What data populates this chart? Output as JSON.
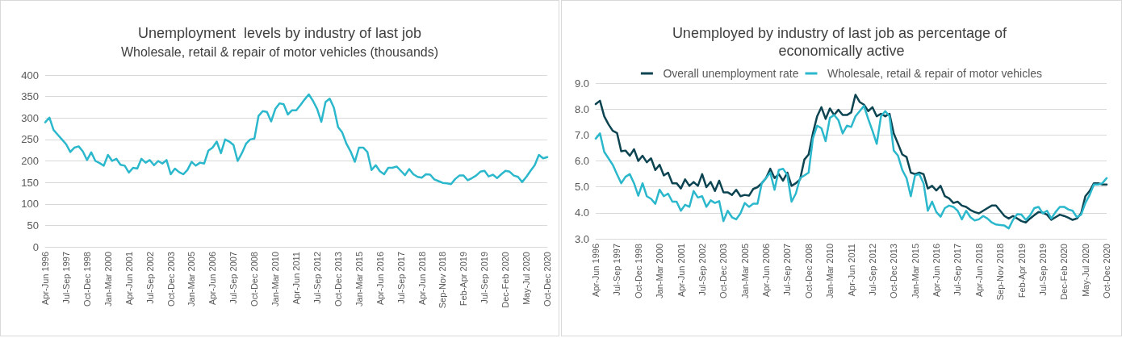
{
  "chart_data": [
    {
      "type": "line",
      "title": "Unemployment  levels by industry of last job",
      "subtitle": "Wholesale, retail & repair of motor vehicles (thousands)",
      "categories": [
        "Apr-Jun 1996",
        null,
        null,
        null,
        null,
        "Jul-Sep 1997",
        null,
        null,
        null,
        null,
        "Oct-Dec 1998",
        null,
        null,
        null,
        null,
        "Jan-Mar 2000",
        null,
        null,
        null,
        null,
        "Apr-Jun 2001",
        null,
        null,
        null,
        null,
        "Jul-Sep 2002",
        null,
        null,
        null,
        null,
        "Oct-Dec 2003",
        null,
        null,
        null,
        null,
        "Jan-Mar 2005",
        null,
        null,
        null,
        null,
        "Apr-Jun 2006",
        null,
        null,
        null,
        null,
        "Jul-Sep 2007",
        null,
        null,
        null,
        null,
        "Oct-Dec 2008",
        null,
        null,
        null,
        null,
        "Jan-Mar 2010",
        null,
        null,
        null,
        null,
        "Apr-Jun 2011",
        null,
        null,
        null,
        null,
        "Jul-Sep 2012",
        null,
        null,
        null,
        null,
        "Oct-Dec 2013",
        null,
        null,
        null,
        null,
        "Jan-Mar 2015",
        null,
        null,
        null,
        null,
        "Apr-Jun 2016",
        null,
        null,
        null,
        null,
        "Jul-Sep 2017",
        null,
        null,
        null,
        null,
        "Apr-Jun 2018",
        null,
        null,
        null,
        null,
        "Sep-Nov 2018",
        null,
        null,
        null,
        null,
        "Feb-Apr 2019",
        null,
        null,
        null,
        null,
        "Jul-Sep 2019",
        null,
        null,
        null,
        null,
        "Dec-Feb 2020",
        null,
        null,
        null,
        null,
        "May-Jul 2020",
        null,
        null,
        null,
        null,
        "Oct-Dec 2020"
      ],
      "series": [
        {
          "color": "#2cb8cc",
          "values": [
            290,
            301,
            272,
            261,
            250,
            239,
            221,
            231,
            234,
            222,
            202,
            220,
            200,
            195,
            189,
            214,
            200,
            205,
            191,
            189,
            173,
            184,
            182,
            205,
            196,
            202,
            190,
            200,
            194,
            202,
            169,
            182,
            174,
            169,
            179,
            198,
            189,
            196,
            194,
            224,
            231,
            245,
            218,
            250,
            245,
            237,
            200,
            218,
            240,
            250,
            252,
            305,
            316,
            314,
            292,
            321,
            334,
            332,
            308,
            318,
            318,
            330,
            343,
            355,
            340,
            321,
            291,
            337,
            345,
            324,
            279,
            266,
            240,
            222,
            198,
            231,
            231,
            221,
            179,
            190,
            176,
            169,
            184,
            184,
            187,
            177,
            167,
            181,
            169,
            163,
            161,
            169,
            168,
            157,
            153,
            149,
            148,
            146,
            158,
            166,
            166,
            155,
            160,
            166,
            175,
            177,
            164,
            168,
            160,
            169,
            177,
            175,
            166,
            163,
            151,
            163,
            177,
            190,
            214,
            206,
            209
          ]
        }
      ],
      "ylim": [
        0,
        400
      ],
      "yticks": [
        0,
        50,
        100,
        150,
        200,
        250,
        300,
        350,
        400
      ],
      "grid": "y"
    },
    {
      "type": "line",
      "title": "Unemployed by industry of last job as percentage of economically active",
      "categories": [
        "Apr-Jun 1996",
        null,
        null,
        null,
        null,
        "Jul-Sep 1997",
        null,
        null,
        null,
        null,
        "Oct-Dec 1998",
        null,
        null,
        null,
        null,
        "Jan-Mar 2000",
        null,
        null,
        null,
        null,
        "Apr-Jun 2001",
        null,
        null,
        null,
        null,
        "Jul-Sep 2002",
        null,
        null,
        null,
        null,
        "Oct-Dec 2003",
        null,
        null,
        null,
        null,
        "Jan-Mar 2005",
        null,
        null,
        null,
        null,
        "Apr-Jun 2006",
        null,
        null,
        null,
        null,
        "Jul-Sep 2007",
        null,
        null,
        null,
        null,
        "Oct-Dec 2008",
        null,
        null,
        null,
        null,
        "Jan-Mar 2010",
        null,
        null,
        null,
        null,
        "Apr-Jun 2011",
        null,
        null,
        null,
        null,
        "Jul-Sep 2012",
        null,
        null,
        null,
        null,
        "Oct-Dec 2013",
        null,
        null,
        null,
        null,
        "Jan-Mar 2015",
        null,
        null,
        null,
        null,
        "Apr-Jun 2016",
        null,
        null,
        null,
        null,
        "Jul-Sep 2017",
        null,
        null,
        null,
        null,
        "Apr-Jun 2018",
        null,
        null,
        null,
        null,
        "Sep-Nov 2018",
        null,
        null,
        null,
        null,
        "Feb-Apr 2019",
        null,
        null,
        null,
        null,
        "Jul-Sep 2019",
        null,
        null,
        null,
        null,
        "Dec-Feb 2020",
        null,
        null,
        null,
        null,
        "May-Jul 2020",
        null,
        null,
        null,
        null,
        "Oct-Dec 2020"
      ],
      "series": [
        {
          "name": "Overall unemployment rate",
          "color": "#0d4452",
          "values": [
            8.19,
            8.32,
            7.72,
            7.41,
            7.16,
            7.08,
            6.37,
            6.4,
            6.2,
            6.45,
            6.0,
            6.2,
            5.95,
            6.1,
            5.65,
            5.85,
            5.44,
            5.55,
            5.14,
            5.14,
            4.94,
            5.29,
            5.04,
            5.19,
            5.04,
            5.49,
            4.99,
            5.19,
            4.84,
            5.24,
            4.79,
            4.79,
            4.69,
            4.89,
            4.64,
            4.69,
            4.66,
            4.92,
            4.99,
            5.14,
            5.34,
            5.7,
            5.34,
            5.49,
            5.24,
            5.55,
            5.04,
            5.14,
            5.29,
            6.05,
            6.25,
            7.06,
            7.72,
            8.07,
            7.62,
            8.02,
            7.77,
            7.97,
            7.77,
            7.77,
            7.87,
            8.55,
            8.27,
            8.17,
            7.92,
            8.07,
            7.72,
            7.82,
            7.72,
            7.82,
            7.06,
            6.66,
            6.25,
            6.15,
            5.55,
            5.49,
            5.55,
            5.49,
            4.94,
            5.04,
            4.86,
            5.04,
            4.64,
            4.56,
            4.38,
            4.43,
            4.28,
            4.23,
            4.11,
            4.03,
            3.98,
            4.08,
            4.18,
            4.28,
            4.28,
            4.08,
            3.88,
            3.78,
            3.88,
            3.78,
            3.68,
            3.63,
            3.78,
            3.91,
            4.03,
            4.01,
            3.93,
            3.73,
            3.83,
            3.93,
            3.88,
            3.81,
            3.73,
            3.78,
            3.98,
            4.64,
            4.84,
            5.14,
            5.14,
            5.09,
            5.09
          ]
        },
        {
          "name": "Wholesale, retail & repair of motor vehicles",
          "color": "#2cb8cc",
          "values": [
            6.86,
            7.06,
            6.35,
            6.1,
            5.85,
            5.49,
            5.14,
            5.39,
            5.49,
            5.14,
            4.66,
            5.14,
            4.64,
            4.54,
            4.35,
            4.89,
            4.64,
            4.74,
            4.43,
            4.43,
            4.08,
            4.31,
            4.23,
            4.84,
            4.59,
            4.64,
            4.23,
            4.48,
            4.38,
            4.45,
            3.68,
            4.08,
            3.83,
            3.75,
            3.98,
            4.38,
            4.23,
            4.35,
            4.35,
            5.14,
            5.34,
            5.55,
            4.89,
            5.65,
            5.7,
            5.46,
            4.43,
            4.74,
            5.34,
            5.44,
            5.55,
            6.86,
            7.36,
            7.26,
            6.76,
            7.66,
            7.77,
            7.57,
            7.06,
            7.36,
            7.31,
            7.72,
            7.92,
            8.12,
            7.62,
            7.16,
            6.66,
            7.72,
            7.92,
            7.72,
            6.4,
            6.2,
            5.65,
            5.34,
            4.64,
            5.44,
            5.49,
            5.14,
            4.08,
            4.43,
            4.03,
            3.85,
            4.18,
            4.28,
            4.23,
            4.08,
            3.75,
            4.08,
            3.83,
            3.71,
            3.75,
            3.88,
            3.78,
            3.63,
            3.55,
            3.53,
            3.51,
            3.4,
            3.73,
            3.95,
            3.93,
            3.73,
            3.9,
            4.18,
            4.23,
            3.98,
            4.08,
            3.78,
            4.03,
            4.23,
            4.23,
            4.13,
            4.08,
            3.83,
            3.93,
            4.38,
            4.69,
            5.09,
            5.09,
            5.14,
            5.34
          ]
        }
      ],
      "ylim": [
        3,
        9
      ],
      "yticks": [
        {
          "value": 3,
          "label": "3.0"
        },
        {
          "value": 4,
          "label": "4.0"
        },
        {
          "value": 5,
          "label": "5.0"
        },
        {
          "value": 6,
          "label": "6.0"
        },
        {
          "value": 7,
          "label": "7.0"
        },
        {
          "value": 8,
          "label": "8.0"
        },
        {
          "value": 9,
          "label": "9.0"
        }
      ],
      "grid": "y",
      "legend": "top"
    }
  ]
}
